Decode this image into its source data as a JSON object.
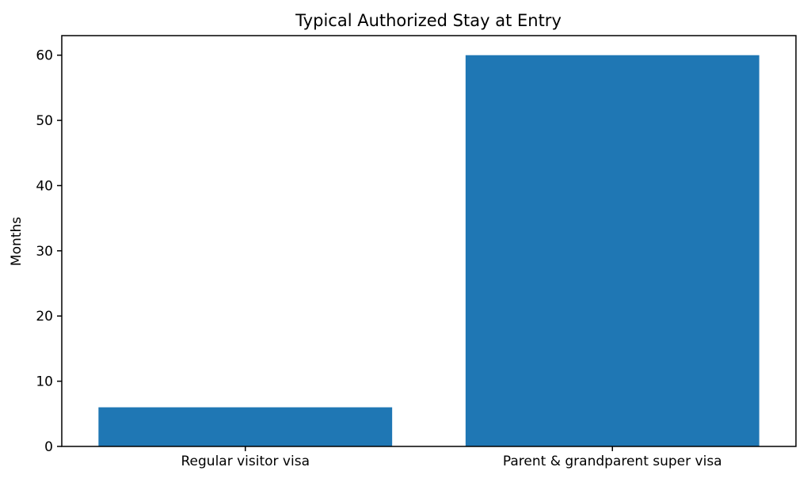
{
  "chart_data": {
    "type": "bar",
    "title": "Typical Authorized Stay at Entry",
    "ylabel": "Months",
    "xlabel": "",
    "categories": [
      "Regular visitor visa",
      "Parent & grandparent super visa"
    ],
    "values": [
      6,
      60
    ],
    "yticks": [
      0,
      10,
      20,
      30,
      40,
      50,
      60
    ],
    "ylim": [
      0,
      63
    ],
    "bar_width_fraction": 0.8,
    "grid": false,
    "legend_position": "none",
    "colors": {
      "bar": "#1f77b4",
      "axis": "#000000",
      "text": "#000000",
      "background": "#ffffff"
    }
  }
}
